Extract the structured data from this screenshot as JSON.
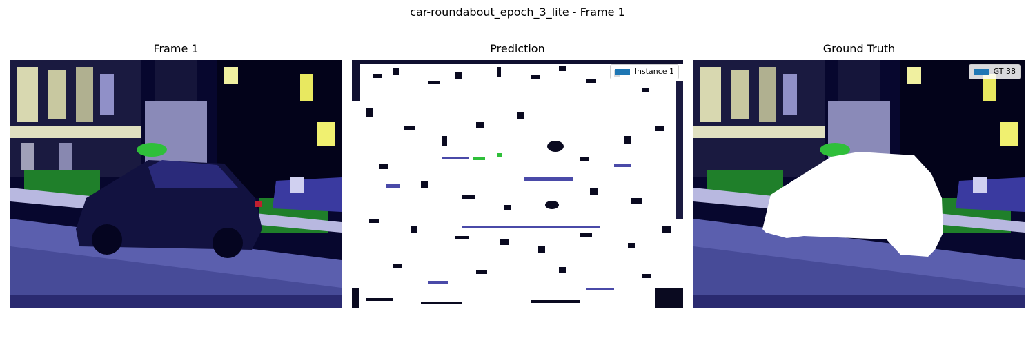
{
  "figure": {
    "title": "car-roundabout_epoch_3_lite - Frame 1"
  },
  "panels": [
    {
      "id": "frame",
      "title": "Frame 1",
      "image_description": "car-roundabout video frame",
      "legend": null
    },
    {
      "id": "prediction",
      "title": "Prediction",
      "image_description": "predicted mask overlay",
      "legend": {
        "label": "Instance 1",
        "color": "#1f77b4"
      }
    },
    {
      "id": "ground_truth",
      "title": "Ground Truth",
      "image_description": "ground-truth mask overlay",
      "legend": {
        "label": "GT 38",
        "color": "#1f77b4"
      }
    }
  ],
  "colors": {
    "sky_dark": "#0a0a3a",
    "road": "#5b5fae",
    "mask_white": "#ffffff",
    "vegetation": "#2fbf3a",
    "building": "#c8c8a0"
  }
}
